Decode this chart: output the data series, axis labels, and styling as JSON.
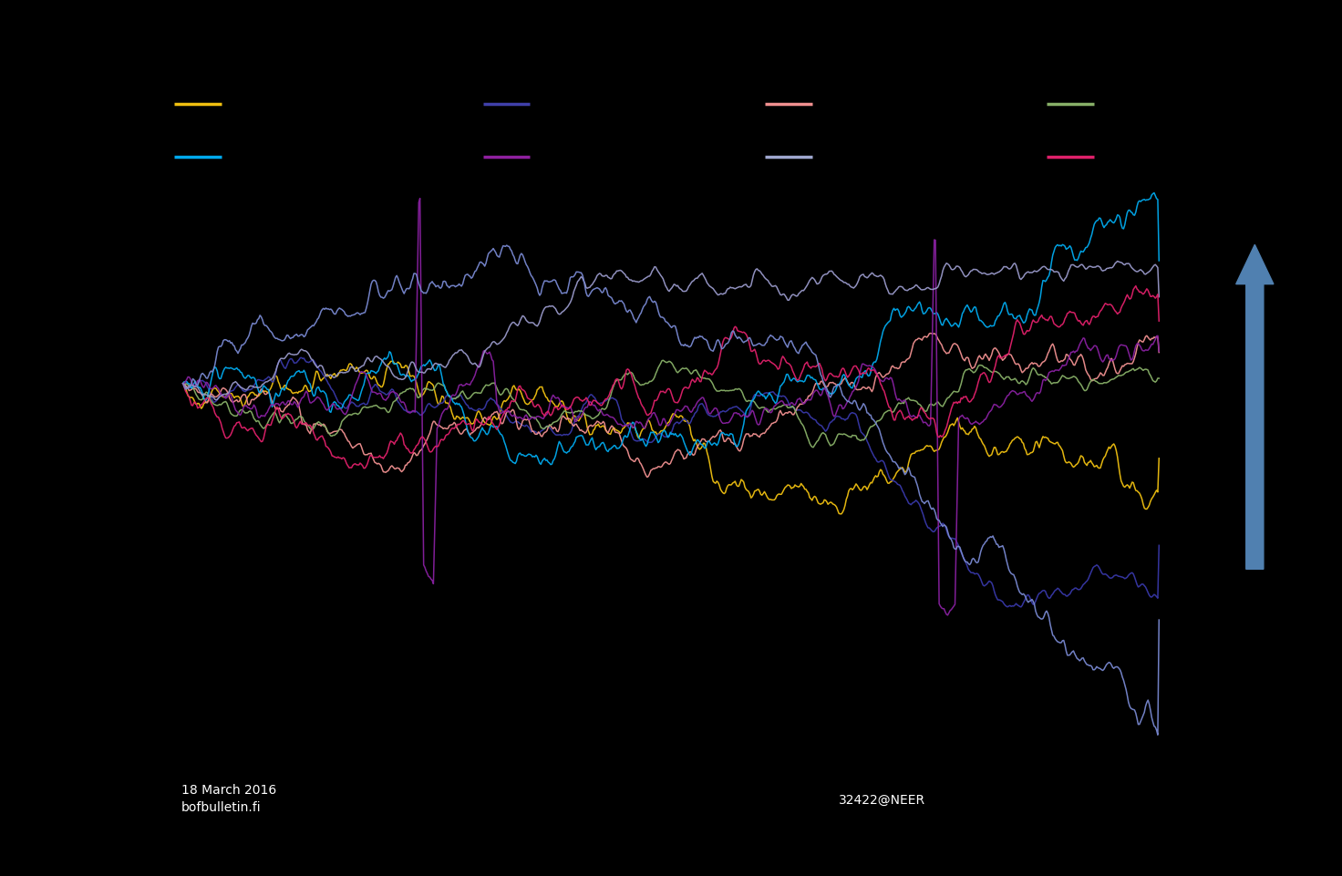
{
  "background_color": "#000000",
  "text_color": "#ffffff",
  "figure_width": 14.72,
  "figure_height": 9.62,
  "footnote1": "18 March 2016",
  "footnote2": "bofbulletin.fi",
  "footnote3": "32422@NEER",
  "legend_labels_row1": [
    "",
    "",
    "",
    ""
  ],
  "legend_labels_row2": [
    "",
    "",
    "",
    ""
  ],
  "legend_colors_row1": [
    "#f0c010",
    "#4040aa",
    "#f09090",
    "#88b068"
  ],
  "legend_colors_row2": [
    "#00aaee",
    "#9020a0",
    "#a0a8d0",
    "#e0206a"
  ],
  "arrow_color": "#5080b0",
  "num_points": 800
}
